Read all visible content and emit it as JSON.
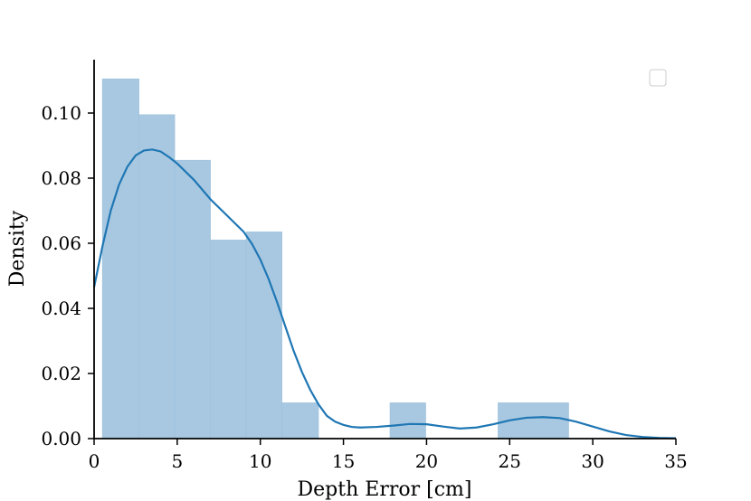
{
  "chart_data": {
    "type": "bar",
    "subtype": "histogram with KDE line",
    "xlabel": "Depth Error [cm]",
    "ylabel": "Density",
    "xlim": [
      0,
      35
    ],
    "ylim": [
      0,
      0.115
    ],
    "x_ticks": [
      "0",
      "5",
      "10",
      "15",
      "20",
      "25",
      "30",
      "35"
    ],
    "y_ticks": [
      "0.00",
      "0.02",
      "0.04",
      "0.06",
      "0.08",
      "0.10"
    ],
    "grid": false,
    "legend": "top-right (empty)",
    "bar_color": "#a8c8e1",
    "line_color": "#1f77b4",
    "histogram": {
      "bins": [
        {
          "x0": 0.5,
          "x1": 2.7,
          "density": 0.1105
        },
        {
          "x0": 2.7,
          "x1": 4.85,
          "density": 0.0995
        },
        {
          "x0": 4.85,
          "x1": 7.0,
          "density": 0.0855
        },
        {
          "x0": 7.0,
          "x1": 9.15,
          "density": 0.061
        },
        {
          "x0": 9.15,
          "x1": 11.3,
          "density": 0.0635
        },
        {
          "x0": 11.3,
          "x1": 13.5,
          "density": 0.011
        },
        {
          "x0": 17.8,
          "x1": 19.95,
          "density": 0.011
        },
        {
          "x0": 24.3,
          "x1": 28.55,
          "density": 0.011
        }
      ]
    },
    "kde": {
      "x": [
        0,
        0.5,
        1,
        1.5,
        2,
        2.5,
        3,
        3.5,
        4,
        4.5,
        5,
        6,
        7,
        8,
        9,
        9.5,
        10,
        10.5,
        11,
        11.5,
        12,
        12.5,
        13,
        13.5,
        14,
        14.5,
        15,
        15.5,
        16,
        17,
        18,
        19,
        20,
        21,
        22,
        23,
        24,
        25,
        26,
        27,
        28,
        29,
        30,
        31,
        32,
        33,
        34,
        35
      ],
      "y": [
        0.0465,
        0.059,
        0.07,
        0.078,
        0.0835,
        0.087,
        0.0885,
        0.0888,
        0.0882,
        0.0865,
        0.0845,
        0.0795,
        0.0735,
        0.0685,
        0.0635,
        0.0598,
        0.055,
        0.049,
        0.042,
        0.0345,
        0.027,
        0.0205,
        0.015,
        0.0105,
        0.007,
        0.0052,
        0.0042,
        0.0036,
        0.0034,
        0.0036,
        0.004,
        0.0045,
        0.0044,
        0.0037,
        0.0031,
        0.0034,
        0.0044,
        0.0056,
        0.0064,
        0.0066,
        0.0063,
        0.0052,
        0.0037,
        0.0022,
        0.0011,
        0.0005,
        0.0002,
        0.0001
      ]
    }
  }
}
